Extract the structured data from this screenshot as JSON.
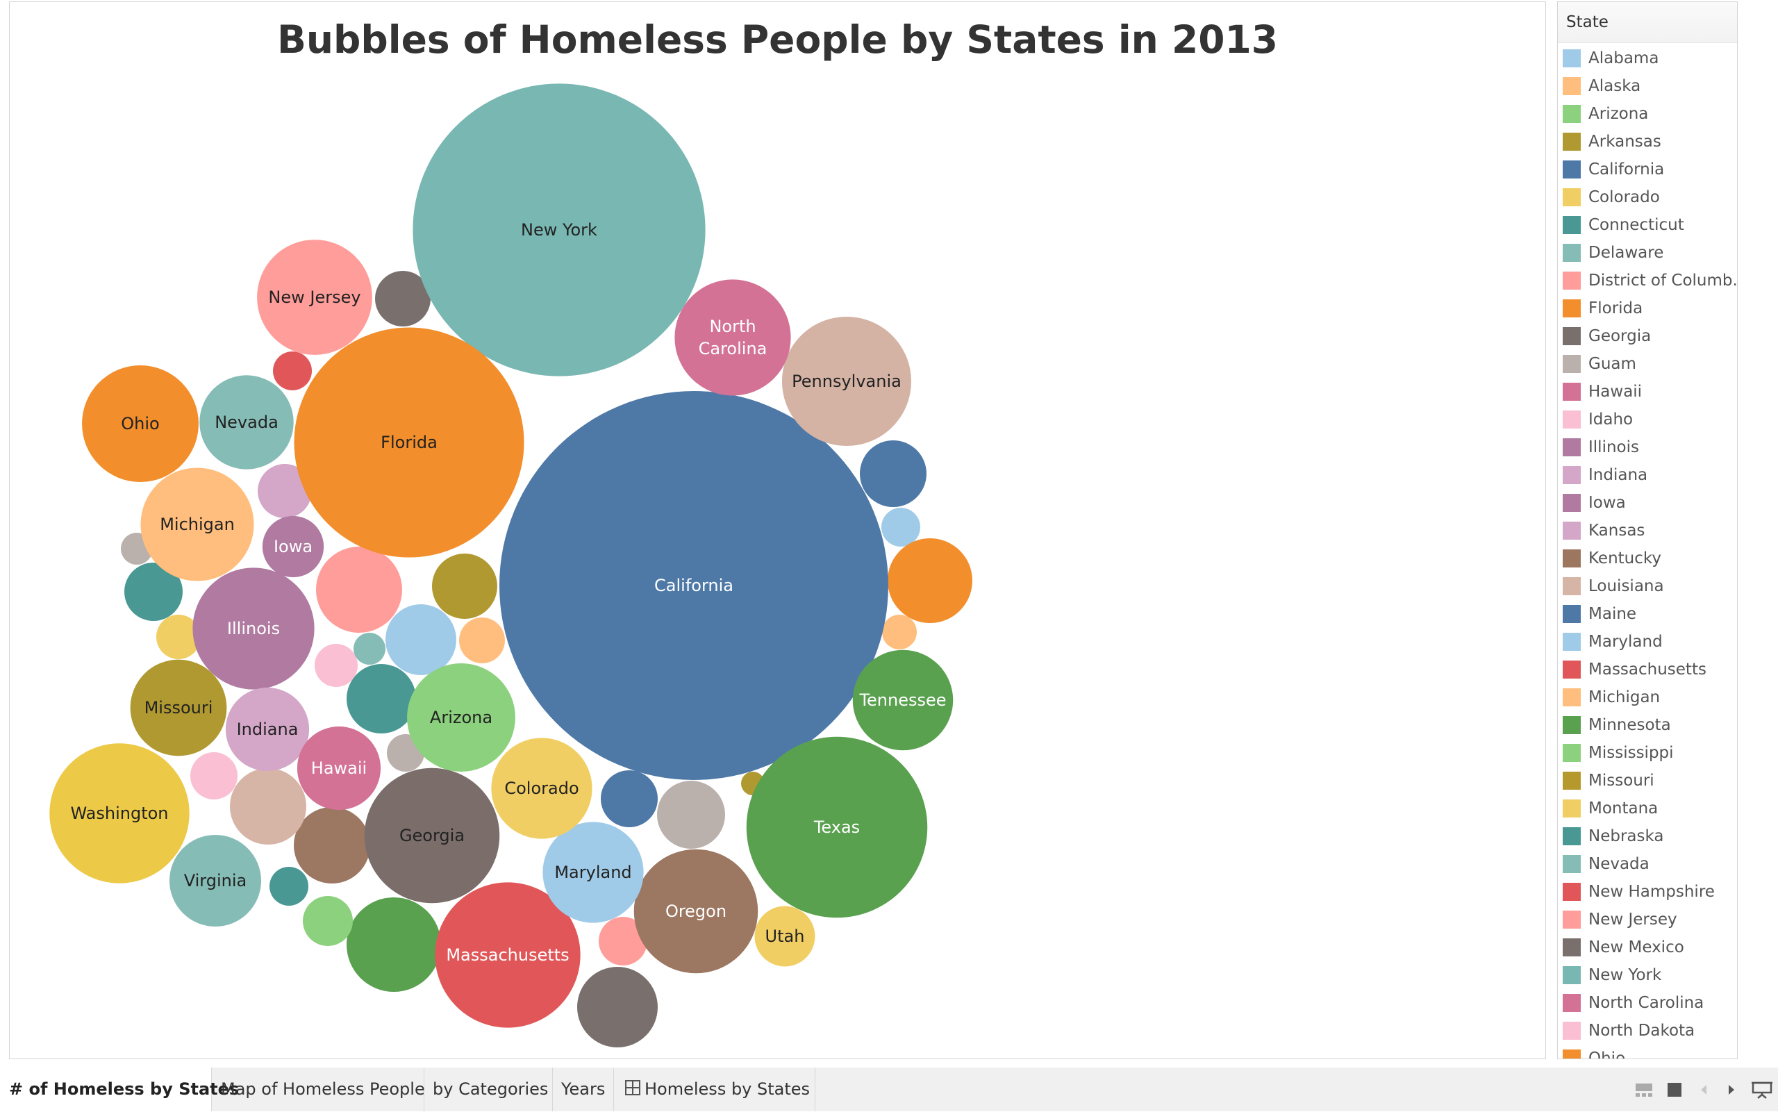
{
  "chart_data": {
    "type": "bubble",
    "title": "Bubbles of Homeless People by States in 2013",
    "legend_title": "State",
    "bubbles": [
      {
        "state": "California",
        "value": 136800,
        "label": "California",
        "color": "#4e79a7"
      },
      {
        "state": "New York",
        "value": 77400,
        "label": "New York",
        "color": "#79b7b2"
      },
      {
        "state": "Florida",
        "value": 47800,
        "label": "Florida",
        "color": "#f28e2b"
      },
      {
        "state": "Texas",
        "value": 29600,
        "label": "Texas",
        "color": "#59a14f"
      },
      {
        "state": "Georgia",
        "value": 16500,
        "label": "Georgia",
        "color": "#7a6d6a"
      },
      {
        "state": "Massachusetts",
        "value": 19100,
        "label": "Massachusetts",
        "color": "#e15759"
      },
      {
        "state": "Washington",
        "value": 17700,
        "label": "Washington",
        "color": "#edc948"
      },
      {
        "state": "Pennsylvania",
        "value": 15100,
        "label": "Pennsylvania",
        "color": "#d4b3a5"
      },
      {
        "state": "Oregon",
        "value": 13900,
        "label": "Oregon",
        "color": "#9c7761"
      },
      {
        "state": "Illinois",
        "value": 13400,
        "label": "Illinois",
        "color": "#b07aa1"
      },
      {
        "state": "Ohio",
        "value": 12300,
        "label": "Ohio",
        "color": "#f28e2b"
      },
      {
        "state": "Michigan",
        "value": 11600,
        "label": "Michigan",
        "color": "#ffbe7d"
      },
      {
        "state": "North Carolina",
        "value": 12200,
        "label": "North Carolina",
        "color": "#d37295"
      },
      {
        "state": "New Jersey",
        "value": 12000,
        "label": "New Jersey",
        "color": "#ff9d9a"
      },
      {
        "state": "Arizona",
        "value": 10600,
        "label": "Arizona",
        "color": "#8cd17d"
      },
      {
        "state": "Maryland",
        "value": 9200,
        "label": "Maryland",
        "color": "#a0cbe8"
      },
      {
        "state": "Colorado",
        "value": 9200,
        "label": "Colorado",
        "color": "#f1ce63"
      },
      {
        "state": "Tennessee",
        "value": 9100,
        "label": "Tennessee",
        "color": "#59a14f"
      },
      {
        "state": "Missouri",
        "value": 8400,
        "label": "Missouri",
        "color": "#b09930"
      },
      {
        "state": "Nevada",
        "value": 8000,
        "label": "Nevada",
        "color": "#86bcb6"
      },
      {
        "state": "Virginia",
        "value": 7600,
        "label": "Virginia",
        "color": "#86bcb6"
      },
      {
        "state": "Indiana",
        "value": 6300,
        "label": "Indiana",
        "color": "#d4a6c8"
      },
      {
        "state": "Hawaii",
        "value": 6300,
        "label": "Hawaii",
        "color": "#d37295"
      },
      {
        "state": "Utah",
        "value": 3300,
        "label": "Utah",
        "color": "#f1ce63"
      },
      {
        "state": "Iowa",
        "value": 3400,
        "label": "Iowa",
        "color": "#b07aa1"
      }
    ]
  },
  "legend": {
    "title": "State",
    "items": [
      {
        "label": "Alabama",
        "color": "#a0cbe8"
      },
      {
        "label": "Alaska",
        "color": "#ffbe7d"
      },
      {
        "label": "Arizona",
        "color": "#8cd17d"
      },
      {
        "label": "Arkansas",
        "color": "#b09930"
      },
      {
        "label": "California",
        "color": "#4e79a7"
      },
      {
        "label": "Colorado",
        "color": "#f1ce63"
      },
      {
        "label": "Connecticut",
        "color": "#499894"
      },
      {
        "label": "Delaware",
        "color": "#86bcb6"
      },
      {
        "label": "District of Columb..",
        "color": "#ff9d9a"
      },
      {
        "label": "Florida",
        "color": "#f28e2b"
      },
      {
        "label": "Georgia",
        "color": "#79706e"
      },
      {
        "label": "Guam",
        "color": "#bab0ac"
      },
      {
        "label": "Hawaii",
        "color": "#d37295"
      },
      {
        "label": "Idaho",
        "color": "#fabfd2"
      },
      {
        "label": "Illinois",
        "color": "#b07aa1"
      },
      {
        "label": "Indiana",
        "color": "#d4a6c8"
      },
      {
        "label": "Iowa",
        "color": "#b07aa1"
      },
      {
        "label": "Kansas",
        "color": "#d4a6c8"
      },
      {
        "label": "Kentucky",
        "color": "#9d7660"
      },
      {
        "label": "Louisiana",
        "color": "#d7b5a6"
      },
      {
        "label": "Maine",
        "color": "#4e79a7"
      },
      {
        "label": "Maryland",
        "color": "#a0cbe8"
      },
      {
        "label": "Massachusetts",
        "color": "#e15759"
      },
      {
        "label": "Michigan",
        "color": "#ffbe7d"
      },
      {
        "label": "Minnesota",
        "color": "#59a14f"
      },
      {
        "label": "Mississippi",
        "color": "#8cd17d"
      },
      {
        "label": "Missouri",
        "color": "#b6992d"
      },
      {
        "label": "Montana",
        "color": "#f1ce63"
      },
      {
        "label": "Nebraska",
        "color": "#499894"
      },
      {
        "label": "Nevada",
        "color": "#86bcb6"
      },
      {
        "label": "New Hampshire",
        "color": "#e15759"
      },
      {
        "label": "New Jersey",
        "color": "#ff9d9a"
      },
      {
        "label": "New Mexico",
        "color": "#79706e"
      },
      {
        "label": "New York",
        "color": "#79b7b2"
      },
      {
        "label": "North Carolina",
        "color": "#d37295"
      },
      {
        "label": "North Dakota",
        "color": "#fabfd2"
      },
      {
        "label": "Ohio",
        "color": "#f28e2b"
      }
    ]
  },
  "tabs": [
    {
      "label": "# of Homeless by States",
      "active": true
    },
    {
      "label": "Map of Homeless People",
      "active": false
    },
    {
      "label": "by Categories",
      "active": false
    },
    {
      "label": "Years",
      "active": false
    },
    {
      "label": "Homeless by States",
      "active": false,
      "icon": "grid-icon"
    }
  ]
}
